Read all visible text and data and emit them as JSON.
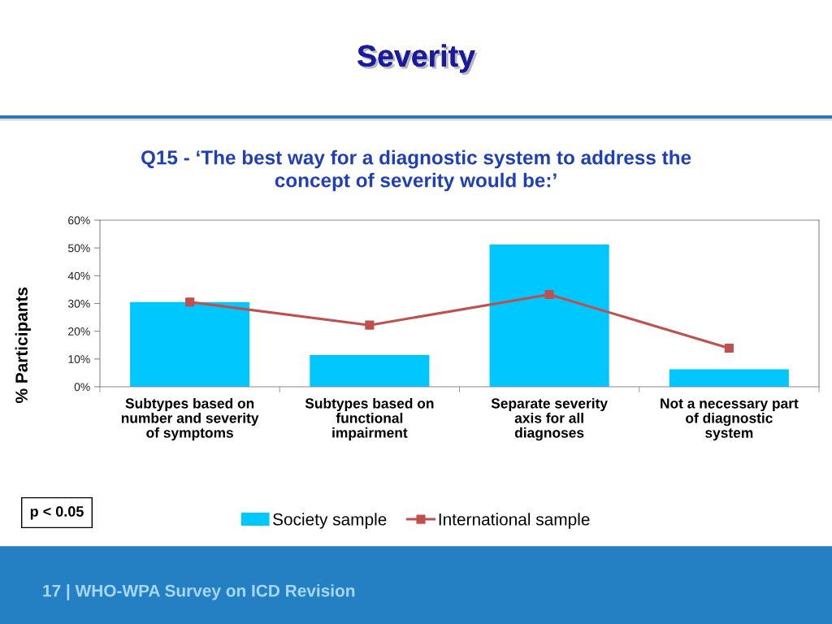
{
  "chart_data": {
    "type": "bar",
    "title": "Severity",
    "subtitle": "Q15 - ‘The best way for a diagnostic system to address the\nconcept of severity would be:’",
    "ylabel": "% Participants",
    "categories": [
      "Subtypes based on\nnumber and severity\nof symptoms",
      "Subtypes based on\nfunctional\nimpairment",
      "Separate severity\naxis for all\ndiagnoses",
      "Not a necessary part\nof diagnostic\nsystem"
    ],
    "series": [
      {
        "name": "Society sample",
        "color": "#00c8ff",
        "values": [
          30.5,
          11.4,
          51.2,
          6.3
        ]
      },
      {
        "name": "International sample",
        "type": "line",
        "color": "#c0504d",
        "marker": "square",
        "line_style": "solid",
        "values": [
          30.5,
          22.2,
          33.2,
          13.9
        ]
      }
    ],
    "ylim": [
      0,
      60
    ],
    "yticks": [
      {
        "value": 0,
        "label": "0%"
      },
      {
        "value": 10,
        "label": "10%"
      },
      {
        "value": 20,
        "label": "20%"
      },
      {
        "value": 30,
        "label": "30%"
      },
      {
        "value": 40,
        "label": "40%"
      },
      {
        "value": 50,
        "label": "50%"
      },
      {
        "value": 60,
        "label": "60%"
      }
    ],
    "legend": "bottom",
    "annotations": [
      "p < 0.05",
      "17 | WHO-WPA Survey on ICD Revision"
    ]
  }
}
